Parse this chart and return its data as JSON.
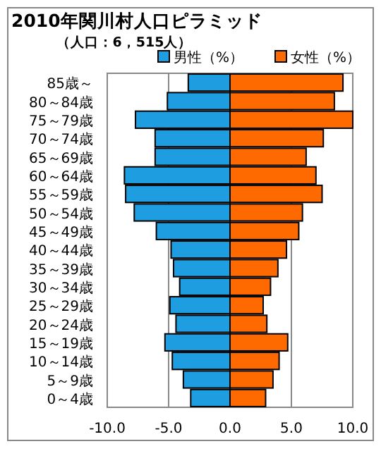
{
  "chart_data": {
    "type": "bar",
    "orientation": "horizontal",
    "title": "2010年関川村人口ピラミッド",
    "subtitle": "（人口：6，515人）",
    "categories": [
      "85歳～",
      "80～84歳",
      "75～79歳",
      "70～74歳",
      "65～69歳",
      "60～64歳",
      "55～59歳",
      "50～54歳",
      "45～49歳",
      "40～44歳",
      "35～39歳",
      "30～34歳",
      "25～29歳",
      "20～24歳",
      "15～19歳",
      "10～14歳",
      "5～9歳",
      "0～4歳"
    ],
    "series": [
      {
        "name": "男性（%）",
        "color": "#1e9ee0",
        "values": [
          -3.4,
          -5.1,
          -7.7,
          -6.1,
          -6.1,
          -8.6,
          -8.5,
          -7.8,
          -6.0,
          -4.8,
          -4.6,
          -4.1,
          -4.9,
          -4.4,
          -5.3,
          -4.7,
          -3.8,
          -3.2
        ]
      },
      {
        "name": "女性（%）",
        "color": "#ff6a00",
        "values": [
          9.2,
          8.5,
          10.0,
          7.6,
          6.2,
          7.0,
          7.5,
          5.9,
          5.6,
          4.6,
          3.9,
          3.3,
          2.7,
          3.0,
          4.7,
          4.0,
          3.5,
          2.9
        ]
      }
    ],
    "xlim": [
      -10,
      10
    ],
    "xticks": [
      {
        "value": -10,
        "label": "-10.0"
      },
      {
        "value": -5,
        "label": "-5.0"
      },
      {
        "value": 0,
        "label": "0.0"
      },
      {
        "value": 5,
        "label": "5.0"
      },
      {
        "value": 10,
        "label": "10.0"
      }
    ],
    "grid": "x",
    "legend": "top right",
    "stacked": true
  }
}
